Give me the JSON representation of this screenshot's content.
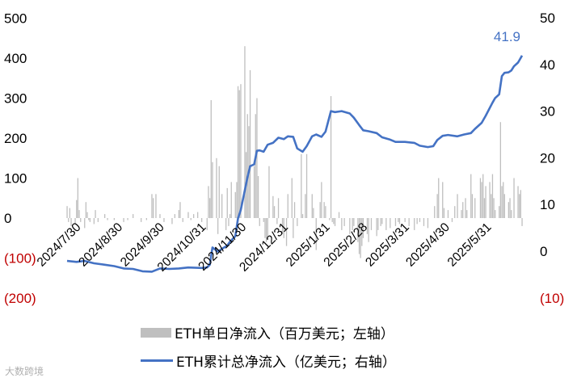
{
  "chart_data": {
    "type": "bar+line",
    "left_axis": {
      "ticks": [
        "500",
        "400",
        "300",
        "200",
        "100",
        "0",
        "(100)",
        "(200)"
      ],
      "values": [
        500,
        400,
        300,
        200,
        100,
        0,
        -100,
        -200
      ],
      "ylim": [
        -200,
        500
      ]
    },
    "right_axis": {
      "ticks": [
        "50",
        "40",
        "30",
        "20",
        "10",
        "0",
        "(10)"
      ],
      "values": [
        50,
        40,
        30,
        20,
        10,
        0,
        -10
      ],
      "ylim": [
        -10,
        50
      ]
    },
    "x_ticks": [
      "2024/7/30",
      "2024/8/30",
      "2024/9/30",
      "2024/10/31",
      "2024/11/30",
      "2024/12/31",
      "2025/1/31",
      "2025/2/28",
      "2025/3/31",
      "2025/4/30",
      "2025/5/31"
    ],
    "x_start": "2024-07-23",
    "x_end": "2025-06-26",
    "series": [
      {
        "name": "ETH单日净流入（百万美元；左轴）",
        "axis": "left",
        "kind": "bar",
        "color": "#bfbfbf",
        "points": [
          [
            "2024-07-23",
            30
          ],
          [
            "2024-07-24",
            -10
          ],
          [
            "2024-07-25",
            25
          ],
          [
            "2024-07-26",
            -20
          ],
          [
            "2024-07-29",
            -15
          ],
          [
            "2024-07-30",
            45
          ],
          [
            "2024-07-31",
            100
          ],
          [
            "2024-08-01",
            20
          ],
          [
            "2024-08-02",
            -10
          ],
          [
            "2024-08-05",
            -25
          ],
          [
            "2024-08-06",
            40
          ],
          [
            "2024-08-07",
            15
          ],
          [
            "2024-08-08",
            -5
          ],
          [
            "2024-08-09",
            -10
          ],
          [
            "2024-08-12",
            -15
          ],
          [
            "2024-08-13",
            20
          ],
          [
            "2024-08-15",
            -10
          ],
          [
            "2024-08-20",
            10
          ],
          [
            "2024-08-22",
            -5
          ],
          [
            "2024-08-27",
            -5
          ],
          [
            "2024-09-03",
            -10
          ],
          [
            "2024-09-06",
            -5
          ],
          [
            "2024-09-10",
            10
          ],
          [
            "2024-09-16",
            -10
          ],
          [
            "2024-09-20",
            -5
          ],
          [
            "2024-09-24",
            60
          ],
          [
            "2024-09-25",
            50
          ],
          [
            "2024-09-27",
            60
          ],
          [
            "2024-09-30",
            10
          ],
          [
            "2024-10-03",
            -10
          ],
          [
            "2024-10-09",
            -15
          ],
          [
            "2024-10-11",
            10
          ],
          [
            "2024-10-14",
            20
          ],
          [
            "2024-10-15",
            40
          ],
          [
            "2024-10-17",
            -10
          ],
          [
            "2024-10-21",
            15
          ],
          [
            "2024-10-23",
            -5
          ],
          [
            "2024-10-25",
            10
          ],
          [
            "2024-10-28",
            15
          ],
          [
            "2024-10-31",
            -10
          ],
          [
            "2024-11-04",
            -30
          ],
          [
            "2024-11-05",
            80
          ],
          [
            "2024-11-06",
            50
          ],
          [
            "2024-11-07",
            295
          ],
          [
            "2024-11-08",
            140
          ],
          [
            "2024-11-11",
            150
          ],
          [
            "2024-11-12",
            -40
          ],
          [
            "2024-11-13",
            130
          ],
          [
            "2024-11-15",
            60
          ],
          [
            "2024-11-18",
            -30
          ],
          [
            "2024-11-19",
            75
          ],
          [
            "2024-11-20",
            -20
          ],
          [
            "2024-11-21",
            10
          ],
          [
            "2024-11-22",
            90
          ],
          [
            "2024-11-25",
            65
          ],
          [
            "2024-11-26",
            90
          ],
          [
            "2024-11-27",
            330
          ],
          [
            "2024-11-28",
            320
          ],
          [
            "2024-11-29",
            335
          ],
          [
            "2024-12-02",
            430
          ],
          [
            "2024-12-03",
            165
          ],
          [
            "2024-12-04",
            260
          ],
          [
            "2024-12-05",
            230
          ],
          [
            "2024-12-06",
            370
          ],
          [
            "2024-12-09",
            130
          ],
          [
            "2024-12-10",
            260
          ],
          [
            "2024-12-11",
            300
          ],
          [
            "2024-12-12",
            105
          ],
          [
            "2024-12-13",
            -20
          ],
          [
            "2024-12-16",
            -10
          ],
          [
            "2024-12-17",
            -50
          ],
          [
            "2024-12-18",
            -60
          ],
          [
            "2024-12-19",
            -55
          ],
          [
            "2024-12-20",
            130
          ],
          [
            "2024-12-23",
            55
          ],
          [
            "2024-12-24",
            30
          ],
          [
            "2024-12-26",
            -15
          ],
          [
            "2024-12-27",
            50
          ],
          [
            "2024-12-30",
            -40
          ],
          [
            "2024-12-31",
            -50
          ],
          [
            "2025-01-02",
            -70
          ],
          [
            "2025-01-03",
            60
          ],
          [
            "2025-01-06",
            100
          ],
          [
            "2025-01-07",
            -50
          ],
          [
            "2025-01-08",
            40
          ],
          [
            "2025-01-10",
            -20
          ],
          [
            "2025-01-13",
            160
          ],
          [
            "2025-01-14",
            10
          ],
          [
            "2025-01-16",
            60
          ],
          [
            "2025-01-17",
            160
          ],
          [
            "2025-01-21",
            60
          ],
          [
            "2025-01-22",
            25
          ],
          [
            "2025-01-24",
            -80
          ],
          [
            "2025-01-27",
            40
          ],
          [
            "2025-01-28",
            90
          ],
          [
            "2025-01-30",
            40
          ],
          [
            "2025-01-31",
            30
          ],
          [
            "2025-02-03",
            -5
          ],
          [
            "2025-02-04",
            305
          ],
          [
            "2025-02-05",
            -10
          ],
          [
            "2025-02-06",
            -15
          ],
          [
            "2025-02-07",
            -20
          ],
          [
            "2025-02-10",
            15
          ],
          [
            "2025-02-12",
            -30
          ],
          [
            "2025-02-14",
            -20
          ],
          [
            "2025-02-18",
            -40
          ],
          [
            "2025-02-20",
            -30
          ],
          [
            "2025-02-21",
            -20
          ],
          [
            "2025-02-24",
            -60
          ],
          [
            "2025-02-25",
            -90
          ],
          [
            "2025-02-26",
            -100
          ],
          [
            "2025-02-27",
            -70
          ],
          [
            "2025-02-28",
            -50
          ],
          [
            "2025-03-03",
            -40
          ],
          [
            "2025-03-04",
            -60
          ],
          [
            "2025-03-06",
            -30
          ],
          [
            "2025-03-10",
            -45
          ],
          [
            "2025-03-11",
            -30
          ],
          [
            "2025-03-13",
            -20
          ],
          [
            "2025-03-14",
            -15
          ],
          [
            "2025-03-17",
            -30
          ],
          [
            "2025-03-20",
            -25
          ],
          [
            "2025-03-24",
            -20
          ],
          [
            "2025-03-26",
            -10
          ],
          [
            "2025-03-27",
            -15
          ],
          [
            "2025-03-31",
            -10
          ],
          [
            "2025-04-03",
            -20
          ],
          [
            "2025-04-07",
            -30
          ],
          [
            "2025-04-09",
            -15
          ],
          [
            "2025-04-11",
            -10
          ],
          [
            "2025-04-14",
            -20
          ],
          [
            "2025-04-17",
            -25
          ],
          [
            "2025-04-22",
            30
          ],
          [
            "2025-04-24",
            60
          ],
          [
            "2025-04-25",
            100
          ],
          [
            "2025-04-28",
            90
          ],
          [
            "2025-04-29",
            25
          ],
          [
            "2025-05-02",
            20
          ],
          [
            "2025-05-05",
            -10
          ],
          [
            "2025-05-07",
            30
          ],
          [
            "2025-05-09",
            60
          ],
          [
            "2025-05-12",
            20
          ],
          [
            "2025-05-13",
            40
          ],
          [
            "2025-05-15",
            50
          ],
          [
            "2025-05-16",
            20
          ],
          [
            "2025-05-19",
            110
          ],
          [
            "2025-05-20",
            60
          ],
          [
            "2025-05-22",
            50
          ],
          [
            "2025-05-26",
            100
          ],
          [
            "2025-05-27",
            90
          ],
          [
            "2025-05-28",
            110
          ],
          [
            "2025-05-29",
            50
          ],
          [
            "2025-05-30",
            80
          ],
          [
            "2025-06-02",
            90
          ],
          [
            "2025-06-03",
            60
          ],
          [
            "2025-06-04",
            110
          ],
          [
            "2025-06-05",
            50
          ],
          [
            "2025-06-06",
            20
          ],
          [
            "2025-06-09",
            30
          ],
          [
            "2025-06-10",
            240
          ],
          [
            "2025-06-11",
            80
          ],
          [
            "2025-06-12",
            90
          ],
          [
            "2025-06-13",
            60
          ],
          [
            "2025-06-16",
            40
          ],
          [
            "2025-06-17",
            50
          ],
          [
            "2025-06-18",
            20
          ],
          [
            "2025-06-20",
            100
          ],
          [
            "2025-06-23",
            80
          ],
          [
            "2025-06-24",
            60
          ],
          [
            "2025-06-25",
            70
          ],
          [
            "2025-06-26",
            -20
          ]
        ]
      },
      {
        "name": "ETH累计总净流入（亿美元；右轴）",
        "axis": "right",
        "kind": "line",
        "color": "#4472c4",
        "points": [
          [
            "2024-07-23",
            -2.1
          ],
          [
            "2024-07-30",
            -2.3
          ],
          [
            "2024-08-05",
            -2.1
          ],
          [
            "2024-08-12",
            -2.6
          ],
          [
            "2024-08-20",
            -2.9
          ],
          [
            "2024-08-27",
            -3.2
          ],
          [
            "2024-09-03",
            -3.7
          ],
          [
            "2024-09-10",
            -3.8
          ],
          [
            "2024-09-17",
            -4.3
          ],
          [
            "2024-09-24",
            -4.4
          ],
          [
            "2024-09-30",
            -3.7
          ],
          [
            "2024-10-07",
            -3.8
          ],
          [
            "2024-10-14",
            -3.7
          ],
          [
            "2024-10-21",
            -3.5
          ],
          [
            "2024-10-31",
            -3.6
          ],
          [
            "2024-11-04",
            -3.5
          ],
          [
            "2024-11-06",
            -2.9
          ],
          [
            "2024-11-08",
            0.8
          ],
          [
            "2024-11-12",
            -0.1
          ],
          [
            "2024-11-15",
            0.5
          ],
          [
            "2024-11-19",
            1.2
          ],
          [
            "2024-11-21",
            2.0
          ],
          [
            "2024-11-25",
            3.2
          ],
          [
            "2024-11-27",
            7.0
          ],
          [
            "2024-11-29",
            8.8
          ],
          [
            "2024-12-02",
            13.0
          ],
          [
            "2024-12-04",
            15.8
          ],
          [
            "2024-12-06",
            18.2
          ],
          [
            "2024-12-09",
            18.6
          ],
          [
            "2024-12-11",
            21.5
          ],
          [
            "2024-12-13",
            21.6
          ],
          [
            "2024-12-16",
            21.3
          ],
          [
            "2024-12-19",
            22.8
          ],
          [
            "2024-12-23",
            23.2
          ],
          [
            "2024-12-27",
            24.3
          ],
          [
            "2024-12-31",
            24.0
          ],
          [
            "2025-01-03",
            24.6
          ],
          [
            "2025-01-07",
            24.5
          ],
          [
            "2025-01-10",
            22.0
          ],
          [
            "2025-01-14",
            21.3
          ],
          [
            "2025-01-17",
            22.5
          ],
          [
            "2025-01-21",
            24.6
          ],
          [
            "2025-01-24",
            25.0
          ],
          [
            "2025-01-28",
            24.5
          ],
          [
            "2025-01-31",
            25.6
          ],
          [
            "2025-02-04",
            30.0
          ],
          [
            "2025-02-07",
            29.8
          ],
          [
            "2025-02-12",
            30.0
          ],
          [
            "2025-02-18",
            29.5
          ],
          [
            "2025-02-21",
            28.6
          ],
          [
            "2025-02-25",
            27.0
          ],
          [
            "2025-02-28",
            25.9
          ],
          [
            "2025-03-04",
            25.7
          ],
          [
            "2025-03-10",
            25.3
          ],
          [
            "2025-03-14",
            24.4
          ],
          [
            "2025-03-20",
            23.9
          ],
          [
            "2025-03-24",
            23.4
          ],
          [
            "2025-03-31",
            23.4
          ],
          [
            "2025-04-07",
            23.2
          ],
          [
            "2025-04-11",
            22.6
          ],
          [
            "2025-04-17",
            22.3
          ],
          [
            "2025-04-21",
            22.5
          ],
          [
            "2025-04-24",
            23.8
          ],
          [
            "2025-04-28",
            24.7
          ],
          [
            "2025-05-02",
            24.9
          ],
          [
            "2025-05-09",
            24.6
          ],
          [
            "2025-05-14",
            25.0
          ],
          [
            "2025-05-19",
            25.3
          ],
          [
            "2025-05-22",
            26.2
          ],
          [
            "2025-05-27",
            27.5
          ],
          [
            "2025-05-30",
            29.0
          ],
          [
            "2025-06-04",
            31.8
          ],
          [
            "2025-06-06",
            32.8
          ],
          [
            "2025-06-09",
            33.6
          ],
          [
            "2025-06-11",
            37.5
          ],
          [
            "2025-06-13",
            38.2
          ],
          [
            "2025-06-16",
            38.3
          ],
          [
            "2025-06-18",
            38.7
          ],
          [
            "2025-06-20",
            39.6
          ],
          [
            "2025-06-23",
            40.4
          ],
          [
            "2025-06-24",
            40.9
          ],
          [
            "2025-06-26",
            41.9
          ]
        ]
      }
    ],
    "annotation": {
      "text": "41.9",
      "date": "2025-06-26",
      "value": 41.9,
      "axis": "right"
    }
  },
  "legend": {
    "bar_label": "ETH单日净流入（百万美元；左轴）",
    "line_label": "ETH累计总净流入（亿美元；右轴）"
  },
  "watermark": "大数跨境"
}
